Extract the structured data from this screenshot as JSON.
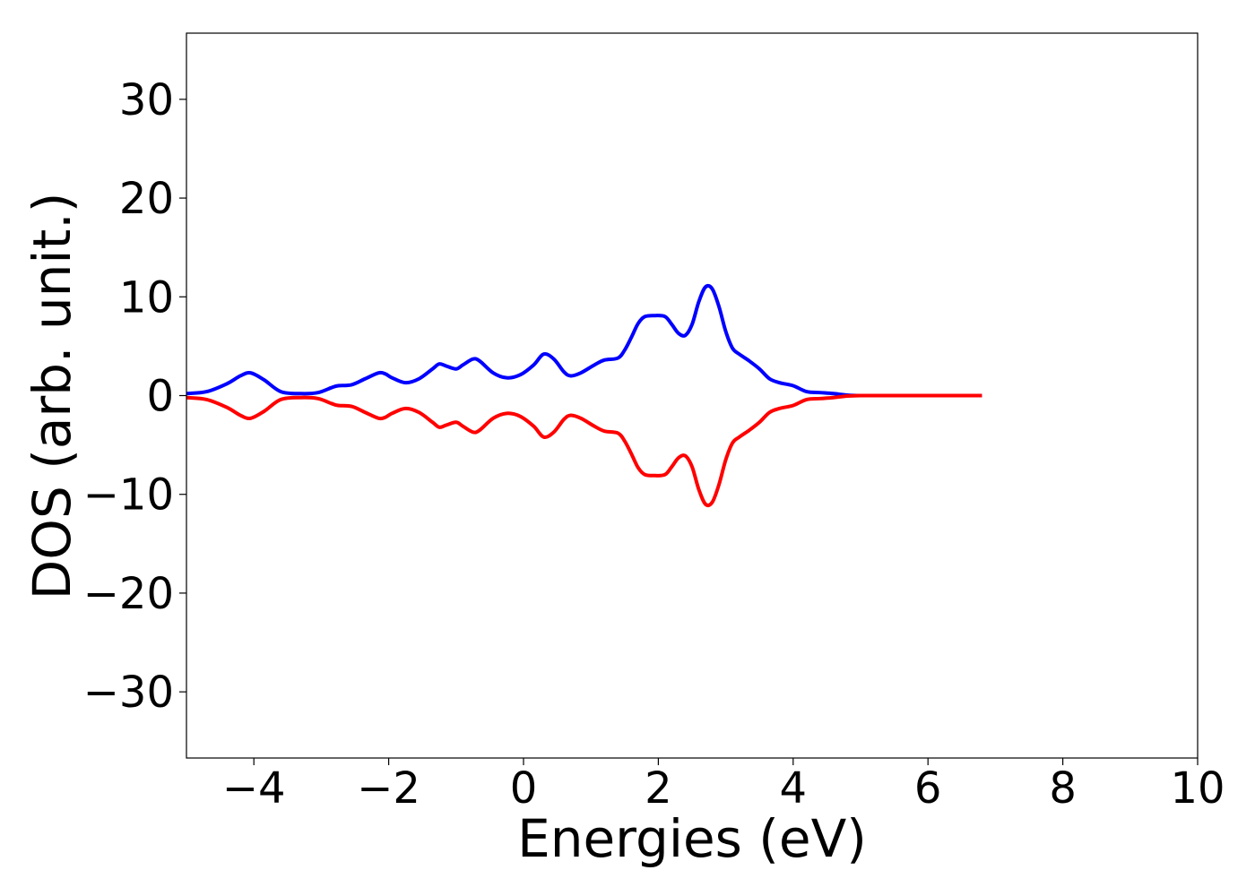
{
  "chart_data": {
    "type": "line",
    "xlabel": "Energies (eV)",
    "ylabel": "DOS (arb. unit.)",
    "xlim": [
      -5,
      10
    ],
    "ylim": [
      -36.7,
      36.7
    ],
    "xticks": [
      -4,
      -2,
      0,
      2,
      4,
      6,
      8,
      10
    ],
    "yticks": [
      -30,
      -20,
      -10,
      0,
      10,
      20,
      30
    ],
    "xtick_labels": [
      "−4",
      "−2",
      "0",
      "2",
      "4",
      "6",
      "8",
      "10"
    ],
    "ytick_labels": [
      "−30",
      "−20",
      "−10",
      "0",
      "10",
      "20",
      "30"
    ],
    "grid": false,
    "legend": "none",
    "series": [
      {
        "color": "#0000ff",
        "x": [
          -5.0,
          -4.7,
          -4.4,
          -4.2,
          -4.05,
          -3.85,
          -3.6,
          -3.3,
          -3.05,
          -2.85,
          -2.75,
          -2.55,
          -2.35,
          -2.15,
          -2.05,
          -1.95,
          -1.75,
          -1.55,
          -1.35,
          -1.25,
          -1.15,
          -1.0,
          -0.9,
          -0.75,
          -0.65,
          -0.45,
          -0.25,
          -0.05,
          0.15,
          0.3,
          0.45,
          0.6,
          0.7,
          0.85,
          1.05,
          1.2,
          1.4,
          1.5,
          1.6,
          1.7,
          1.8,
          1.95,
          2.1,
          2.2,
          2.3,
          2.4,
          2.5,
          2.6,
          2.7,
          2.8,
          2.9,
          3.0,
          3.1,
          3.2,
          3.35,
          3.5,
          3.65,
          3.8,
          4.0,
          4.2,
          4.4,
          4.6,
          4.8,
          5.0,
          5.5,
          6.0,
          6.5,
          6.8
        ],
        "values": [
          0.2,
          0.4,
          1.2,
          2.0,
          2.3,
          1.6,
          0.4,
          0.2,
          0.3,
          0.8,
          1.0,
          1.1,
          1.7,
          2.3,
          2.2,
          1.8,
          1.3,
          1.7,
          2.7,
          3.2,
          3.0,
          2.7,
          3.1,
          3.7,
          3.5,
          2.3,
          1.8,
          2.1,
          3.1,
          4.2,
          3.7,
          2.4,
          2.0,
          2.3,
          3.1,
          3.6,
          3.8,
          4.6,
          5.9,
          7.3,
          8.0,
          8.1,
          8.0,
          7.2,
          6.3,
          6.1,
          7.2,
          9.5,
          11.0,
          10.8,
          9.0,
          6.5,
          4.8,
          4.2,
          3.5,
          2.7,
          1.7,
          1.3,
          1.0,
          0.4,
          0.3,
          0.2,
          0.05,
          0.0,
          0.0,
          0.0,
          0.0,
          0.0
        ]
      },
      {
        "color": "#ff0000",
        "x": [
          -5.0,
          -4.7,
          -4.4,
          -4.2,
          -4.05,
          -3.85,
          -3.6,
          -3.3,
          -3.05,
          -2.85,
          -2.75,
          -2.55,
          -2.35,
          -2.15,
          -2.05,
          -1.95,
          -1.75,
          -1.55,
          -1.35,
          -1.25,
          -1.15,
          -1.0,
          -0.9,
          -0.75,
          -0.65,
          -0.45,
          -0.25,
          -0.05,
          0.15,
          0.3,
          0.45,
          0.6,
          0.7,
          0.85,
          1.05,
          1.2,
          1.4,
          1.5,
          1.6,
          1.7,
          1.8,
          1.95,
          2.1,
          2.2,
          2.3,
          2.4,
          2.5,
          2.6,
          2.7,
          2.8,
          2.9,
          3.0,
          3.1,
          3.2,
          3.35,
          3.5,
          3.65,
          3.8,
          4.0,
          4.2,
          4.4,
          4.6,
          4.8,
          5.0,
          5.5,
          6.0,
          6.5,
          6.8
        ],
        "values": [
          -0.2,
          -0.4,
          -1.2,
          -2.0,
          -2.3,
          -1.6,
          -0.4,
          -0.2,
          -0.3,
          -0.8,
          -1.0,
          -1.1,
          -1.7,
          -2.3,
          -2.2,
          -1.8,
          -1.3,
          -1.7,
          -2.7,
          -3.2,
          -3.0,
          -2.7,
          -3.1,
          -3.7,
          -3.5,
          -2.3,
          -1.8,
          -2.1,
          -3.1,
          -4.2,
          -3.7,
          -2.4,
          -2.0,
          -2.3,
          -3.1,
          -3.6,
          -3.8,
          -4.6,
          -5.9,
          -7.3,
          -8.0,
          -8.1,
          -8.0,
          -7.2,
          -6.3,
          -6.1,
          -7.2,
          -9.5,
          -11.0,
          -10.8,
          -9.0,
          -6.5,
          -4.8,
          -4.2,
          -3.5,
          -2.7,
          -1.7,
          -1.3,
          -1.0,
          -0.4,
          -0.3,
          -0.2,
          -0.05,
          0.0,
          0.0,
          0.0,
          0.0,
          0.0
        ]
      }
    ]
  }
}
